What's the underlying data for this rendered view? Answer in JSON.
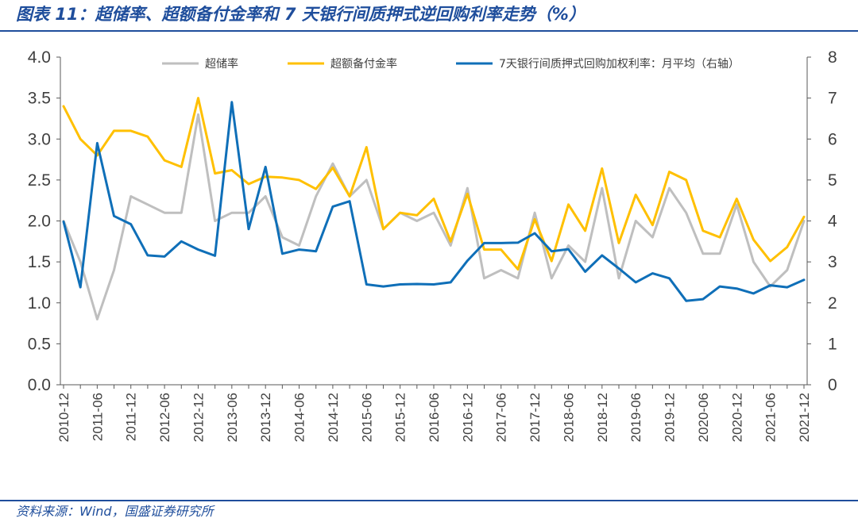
{
  "header": {
    "title": "图表 11：超储率、超额备付金率和 7 天银行间质押式逆回购利率走势（%）"
  },
  "footer": {
    "source": "资料来源：Wind，国盛证券研究所"
  },
  "chart_data": {
    "type": "line",
    "title": "图表 11：超储率、超额备付金率和 7 天银行间质押式逆回购利率走势（%）",
    "x": [
      "2010-12",
      "2011-03",
      "2011-06",
      "2011-09",
      "2011-12",
      "2012-03",
      "2012-06",
      "2012-09",
      "2012-12",
      "2013-03",
      "2013-06",
      "2013-09",
      "2013-12",
      "2014-03",
      "2014-06",
      "2014-09",
      "2014-12",
      "2015-03",
      "2015-06",
      "2015-09",
      "2015-12",
      "2016-03",
      "2016-06",
      "2016-09",
      "2016-12",
      "2017-03",
      "2017-06",
      "2017-09",
      "2017-12",
      "2018-03",
      "2018-06",
      "2018-09",
      "2018-12",
      "2019-03",
      "2019-06",
      "2019-09",
      "2019-12",
      "2020-03",
      "2020-06",
      "2020-09",
      "2020-12",
      "2021-03",
      "2021-06",
      "2021-09",
      "2021-12"
    ],
    "x_tick_labels": [
      "2010-12",
      "2011-06",
      "2011-12",
      "2012-06",
      "2012-12",
      "2013-06",
      "2013-12",
      "2014-06",
      "2014-12",
      "2015-06",
      "2015-12",
      "2016-06",
      "2016-12",
      "2017-06",
      "2017-12",
      "2018-06",
      "2018-12",
      "2019-06",
      "2019-12",
      "2020-06",
      "2020-12",
      "2021-06",
      "2021-12"
    ],
    "ylim_left": [
      0,
      4.0
    ],
    "yticks_left": [
      "0.0",
      "0.5",
      "1.0",
      "1.5",
      "2.0",
      "2.5",
      "3.0",
      "3.5",
      "4.0"
    ],
    "ylim_right": [
      0,
      8
    ],
    "yticks_right": [
      "0",
      "1",
      "2",
      "3",
      "4",
      "5",
      "6",
      "7",
      "8"
    ],
    "legend_position": "top",
    "series": [
      {
        "name": "超储率",
        "axis": "left",
        "color": "#bfbfbf",
        "values": [
          2.0,
          1.5,
          0.8,
          1.4,
          2.3,
          2.2,
          2.1,
          2.1,
          3.3,
          2.0,
          2.1,
          2.1,
          2.3,
          1.8,
          1.7,
          2.3,
          2.7,
          2.3,
          2.5,
          1.9,
          2.1,
          2.0,
          2.1,
          1.7,
          2.4,
          1.3,
          1.4,
          1.3,
          2.1,
          1.3,
          1.7,
          1.5,
          2.4,
          1.3,
          2.0,
          1.8,
          2.4,
          2.1,
          1.6,
          1.6,
          2.2,
          1.5,
          1.2,
          1.4,
          2.0
        ]
      },
      {
        "name": "超额备付金率",
        "axis": "left",
        "color": "#ffc000",
        "values": [
          3.4,
          3.0,
          2.8,
          3.1,
          3.1,
          3.03,
          2.74,
          2.66,
          3.5,
          2.58,
          2.62,
          2.45,
          2.54,
          2.53,
          2.5,
          2.39,
          2.65,
          2.3,
          2.9,
          1.9,
          2.1,
          2.07,
          2.27,
          1.75,
          2.33,
          1.65,
          1.65,
          1.41,
          2.02,
          1.51,
          2.2,
          1.88,
          2.64,
          1.73,
          2.32,
          1.95,
          2.6,
          2.5,
          1.88,
          1.8,
          2.27,
          1.77,
          1.51,
          1.68,
          2.05
        ]
      },
      {
        "name": "7天银行间质押式回购加权利率：月平均（右轴）",
        "axis": "right",
        "color": "#0f6fb8",
        "values": [
          3.98,
          2.38,
          5.9,
          4.12,
          3.92,
          3.16,
          3.13,
          3.5,
          3.3,
          3.15,
          6.9,
          3.8,
          5.32,
          3.2,
          3.3,
          3.26,
          4.35,
          4.48,
          2.45,
          2.4,
          2.45,
          2.46,
          2.45,
          2.5,
          3.03,
          3.46,
          3.46,
          3.47,
          3.7,
          3.26,
          3.31,
          2.76,
          3.16,
          2.84,
          2.5,
          2.72,
          2.6,
          2.05,
          2.09,
          2.4,
          2.35,
          2.23,
          2.43,
          2.38,
          2.56
        ]
      }
    ]
  }
}
